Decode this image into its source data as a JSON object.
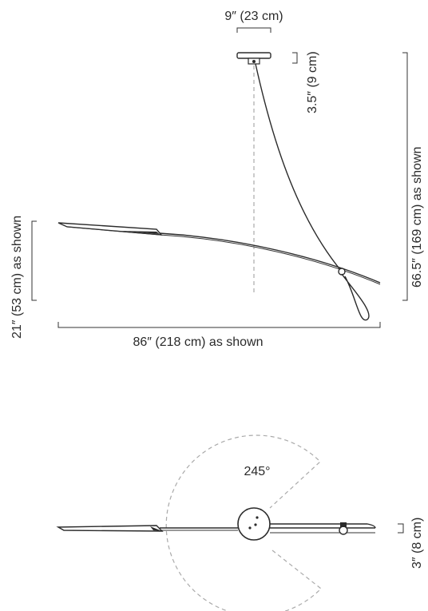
{
  "side_view": {
    "canopy_width_label": "9″ (23 cm)",
    "canopy_height_label": "3.5″ (9 cm)",
    "total_height_label": "66.5″ (169 cm) as shown",
    "shade_height_label": "21″ (53 cm) as shown",
    "total_width_label": "86″ (218 cm) as shown"
  },
  "top_view": {
    "rotation_label": "245°",
    "depth_label": "3″ (8 cm)"
  }
}
